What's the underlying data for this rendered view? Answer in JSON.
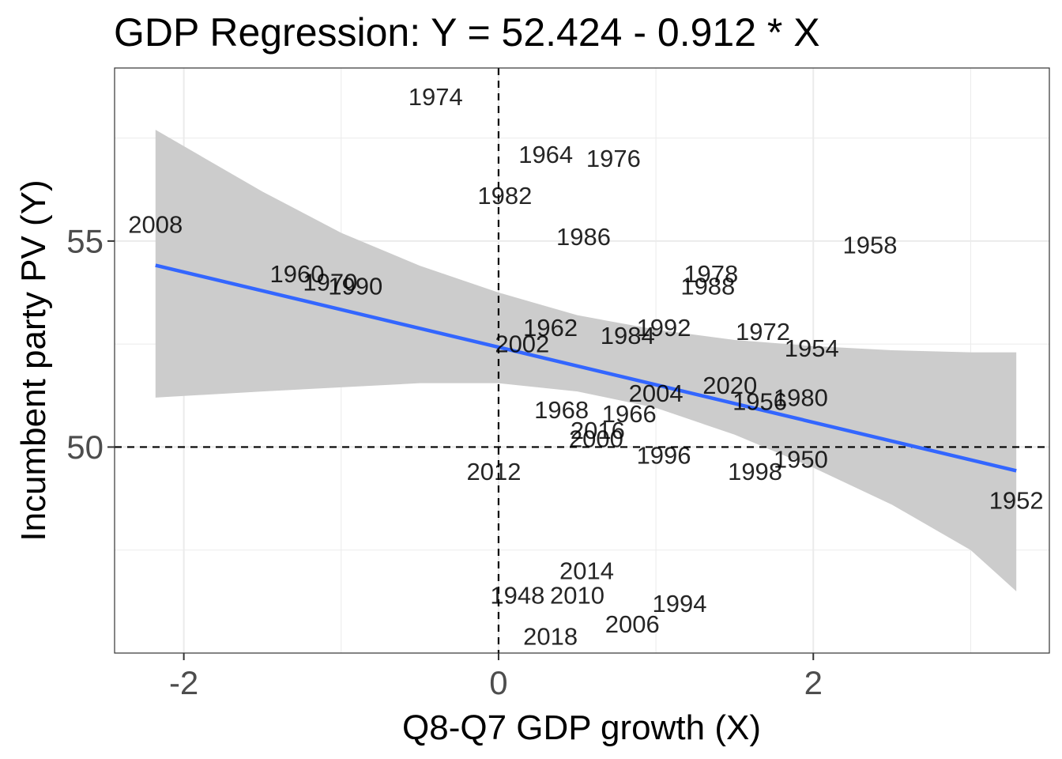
{
  "chart_data": {
    "type": "scatter",
    "title": "GDP Regression: Y = 52.424 - 0.912  * X",
    "xlabel": "Q8-Q7 GDP growth (X)",
    "ylabel": "Incumbent party PV (Y)",
    "xlim": [
      -2.44,
      3.5
    ],
    "ylim": [
      45.0,
      59.2
    ],
    "x_ticks": [
      -2,
      0,
      2
    ],
    "y_ticks": [
      50,
      55
    ],
    "x_tick_labels": [
      "-2",
      "0",
      "2"
    ],
    "y_tick_labels": [
      "50",
      "55"
    ],
    "grid": true,
    "reference_lines": {
      "x": 0,
      "y": 50,
      "style": "dashed"
    },
    "regression": {
      "intercept": 52.424,
      "slope": -0.912,
      "x_range": [
        -2.18,
        3.29
      ],
      "color": "#3366FF",
      "band_color": "#cccccc",
      "band": [
        {
          "x": -2.18,
          "lower": 51.2,
          "upper": 57.7
        },
        {
          "x": -1.5,
          "lower": 51.35,
          "upper": 56.2
        },
        {
          "x": -1.0,
          "lower": 51.45,
          "upper": 55.2
        },
        {
          "x": -0.5,
          "lower": 51.55,
          "upper": 54.4
        },
        {
          "x": 0.0,
          "lower": 51.55,
          "upper": 53.75
        },
        {
          "x": 0.5,
          "lower": 51.35,
          "upper": 53.2
        },
        {
          "x": 1.0,
          "lower": 50.95,
          "upper": 52.85
        },
        {
          "x": 1.5,
          "lower": 50.3,
          "upper": 52.6
        },
        {
          "x": 2.0,
          "lower": 49.5,
          "upper": 52.45
        },
        {
          "x": 2.5,
          "lower": 48.6,
          "upper": 52.35
        },
        {
          "x": 3.0,
          "lower": 47.5,
          "upper": 52.3
        },
        {
          "x": 3.29,
          "lower": 46.5,
          "upper": 52.3
        }
      ]
    },
    "points": [
      {
        "label": "1974",
        "x": -0.4,
        "y": 58.5
      },
      {
        "label": "1964",
        "x": 0.3,
        "y": 57.1
      },
      {
        "label": "1976",
        "x": 0.73,
        "y": 57.0
      },
      {
        "label": "1982",
        "x": 0.04,
        "y": 56.1
      },
      {
        "label": "2008",
        "x": -2.18,
        "y": 55.4
      },
      {
        "label": "1986",
        "x": 0.54,
        "y": 55.1
      },
      {
        "label": "1958",
        "x": 2.36,
        "y": 54.9
      },
      {
        "label": "1978",
        "x": 1.35,
        "y": 54.2
      },
      {
        "label": "1960",
        "x": -1.28,
        "y": 54.2
      },
      {
        "label": "1970",
        "x": -1.07,
        "y": 54.0
      },
      {
        "label": "1988",
        "x": 1.33,
        "y": 53.9
      },
      {
        "label": "1990",
        "x": -0.91,
        "y": 53.9
      },
      {
        "label": "1962",
        "x": 0.33,
        "y": 52.9
      },
      {
        "label": "1992",
        "x": 1.05,
        "y": 52.9
      },
      {
        "label": "1972",
        "x": 1.68,
        "y": 52.8
      },
      {
        "label": "1984",
        "x": 0.82,
        "y": 52.7
      },
      {
        "label": "2002",
        "x": 0.15,
        "y": 52.5
      },
      {
        "label": "1954",
        "x": 1.99,
        "y": 52.4
      },
      {
        "label": "2020",
        "x": 1.47,
        "y": 51.5
      },
      {
        "label": "2004",
        "x": 1.0,
        "y": 51.3
      },
      {
        "label": "1980",
        "x": 1.92,
        "y": 51.2
      },
      {
        "label": "1956",
        "x": 1.66,
        "y": 51.1
      },
      {
        "label": "1968",
        "x": 0.4,
        "y": 50.9
      },
      {
        "label": "1966",
        "x": 0.83,
        "y": 50.8
      },
      {
        "label": "2016",
        "x": 0.63,
        "y": 50.4
      },
      {
        "label": "2000",
        "x": 0.62,
        "y": 50.2
      },
      {
        "label": "1996",
        "x": 1.05,
        "y": 49.8
      },
      {
        "label": "1950",
        "x": 1.92,
        "y": 49.7
      },
      {
        "label": "1998",
        "x": 1.63,
        "y": 49.4
      },
      {
        "label": "2012",
        "x": -0.03,
        "y": 49.4
      },
      {
        "label": "1952",
        "x": 3.29,
        "y": 48.7
      },
      {
        "label": "2014",
        "x": 0.56,
        "y": 47.0
      },
      {
        "label": "1948",
        "x": 0.12,
        "y": 46.4
      },
      {
        "label": "2010",
        "x": 0.5,
        "y": 46.4
      },
      {
        "label": "1994",
        "x": 1.15,
        "y": 46.2
      },
      {
        "label": "2006",
        "x": 0.85,
        "y": 45.7
      },
      {
        "label": "2018",
        "x": 0.33,
        "y": 45.4
      }
    ]
  }
}
